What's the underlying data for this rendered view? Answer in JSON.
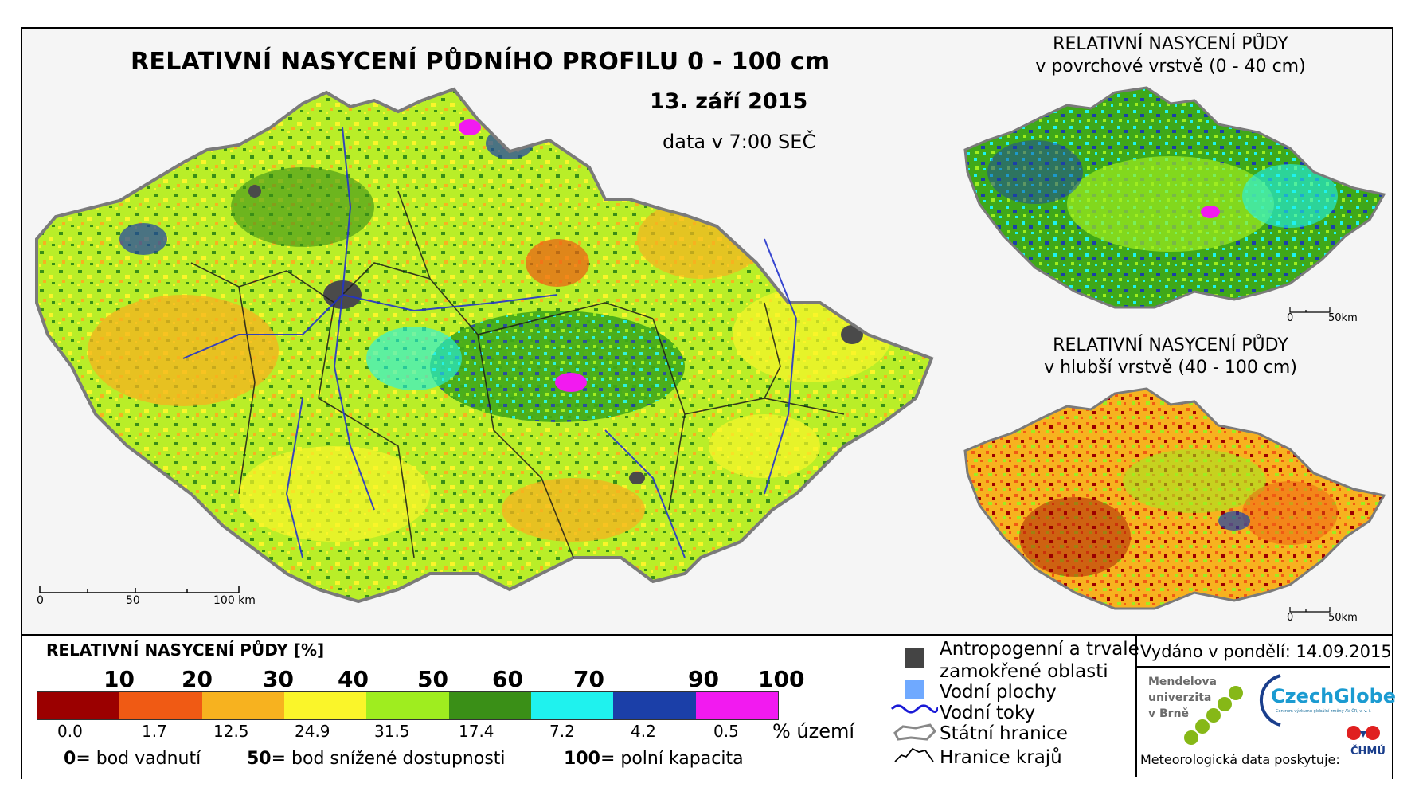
{
  "main_map": {
    "title": "RELATIVNÍ NASYCENÍ PŮDNÍHO PROFILU 0 - 100 cm",
    "date": "13. září 2015",
    "data_time": "data v 7:00 SEČ",
    "scale": [
      "0",
      "50",
      "100 km"
    ]
  },
  "inset_surface": {
    "title_line1": "RELATIVNÍ NASYCENÍ PŮDY",
    "title_line2": "v povrchové vrstvě (0 - 40 cm)",
    "scale": [
      "0",
      "50km"
    ]
  },
  "inset_deep": {
    "title_line1": "RELATIVNÍ NASYCENÍ PŮDY",
    "title_line2": "v hlubší vrstvě (40 - 100 cm)",
    "scale": [
      "0",
      "50km"
    ]
  },
  "legend": {
    "title": "RELATIVNÍ NASYCENÍ PŮDY [%]",
    "thresholds": [
      "10",
      "20",
      "30",
      "40",
      "50",
      "60",
      "70",
      "90",
      "100"
    ],
    "classes": [
      {
        "color": "#9b0000",
        "pct": "0.0"
      },
      {
        "color": "#f05a14",
        "pct": "1.7"
      },
      {
        "color": "#f7b21f",
        "pct": "12.5"
      },
      {
        "color": "#faf52a",
        "pct": "24.9"
      },
      {
        "color": "#9fed1f",
        "pct": "31.5"
      },
      {
        "color": "#3a8f17",
        "pct": "17.4"
      },
      {
        "color": "#1ff2ee",
        "pct": "7.2"
      },
      {
        "color": "#1b3fa8",
        "pct": "4.2"
      },
      {
        "color": "#f21af0",
        "pct": "0.5"
      }
    ],
    "pct_unit": "% území",
    "explain": [
      {
        "value": "0",
        "text": "= bod vadnutí"
      },
      {
        "value": "50",
        "text": "= bod snížené dostupnosti"
      },
      {
        "value": "100",
        "text": "= polní kapacita"
      }
    ]
  },
  "keys": {
    "anthropogenic_line1": "Antropogenní a trvale",
    "anthropogenic_line2": "zamokřené oblasti",
    "water_bodies": "Vodní plochy",
    "rivers": "Vodní toky",
    "state_border": "Státní hranice",
    "region_border": "Hranice krajů"
  },
  "issue": {
    "issued": "Vydáno v pondělí: 14.09.2015",
    "mendel": [
      "Mendelova",
      "univerzita",
      "v Brně"
    ],
    "czechglobe": "CzechGlobe",
    "czechglobe_sub": "Centrum výzkumu globální změny AV ČR, v. v. i.",
    "meteo": "Meteorologická data poskytuje:",
    "chmu": "ČHMÚ"
  }
}
